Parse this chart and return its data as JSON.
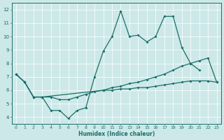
{
  "xlabel": "Humidex (Indice chaleur)",
  "bg_color": "#cde8e8",
  "line_color": "#1a6e6a",
  "grid_color": "#ffffff",
  "xlim": [
    -0.5,
    23.5
  ],
  "ylim": [
    3.5,
    12.5
  ],
  "xticks": [
    0,
    1,
    2,
    3,
    4,
    5,
    6,
    7,
    8,
    9,
    10,
    11,
    12,
    13,
    14,
    15,
    16,
    17,
    18,
    19,
    20,
    21,
    22,
    23
  ],
  "yticks": [
    4,
    5,
    6,
    7,
    8,
    9,
    10,
    11,
    12
  ],
  "line1_x": [
    0,
    1,
    2,
    3,
    4,
    5,
    6,
    7,
    8,
    9,
    10,
    11,
    12,
    13,
    14,
    15,
    16,
    17,
    18,
    19,
    20,
    21
  ],
  "line1_y": [
    7.2,
    6.6,
    5.5,
    5.5,
    4.5,
    4.5,
    3.9,
    4.5,
    4.7,
    7.0,
    8.9,
    10.0,
    11.9,
    10.0,
    10.1,
    9.6,
    10.0,
    11.5,
    11.5,
    9.2,
    8.0,
    7.5
  ],
  "line2_x": [
    0,
    1,
    2,
    3,
    10,
    11,
    12,
    13,
    14,
    15,
    16,
    17,
    18,
    19,
    20,
    21,
    22,
    23
  ],
  "line2_y": [
    7.2,
    6.6,
    5.5,
    5.5,
    6.0,
    6.2,
    6.3,
    6.5,
    6.6,
    6.8,
    7.0,
    7.2,
    7.5,
    7.8,
    8.0,
    8.2,
    8.4,
    6.6
  ],
  "line3_x": [
    0,
    1,
    2,
    3,
    4,
    5,
    6,
    7,
    8,
    9,
    10,
    11,
    12,
    13,
    14,
    15,
    16,
    17,
    18,
    19,
    20,
    21,
    22,
    23
  ],
  "line3_y": [
    7.2,
    6.6,
    5.5,
    5.5,
    5.5,
    5.3,
    5.3,
    5.5,
    5.7,
    5.9,
    6.0,
    6.0,
    6.1,
    6.1,
    6.2,
    6.2,
    6.3,
    6.4,
    6.5,
    6.6,
    6.7,
    6.7,
    6.7,
    6.6
  ]
}
